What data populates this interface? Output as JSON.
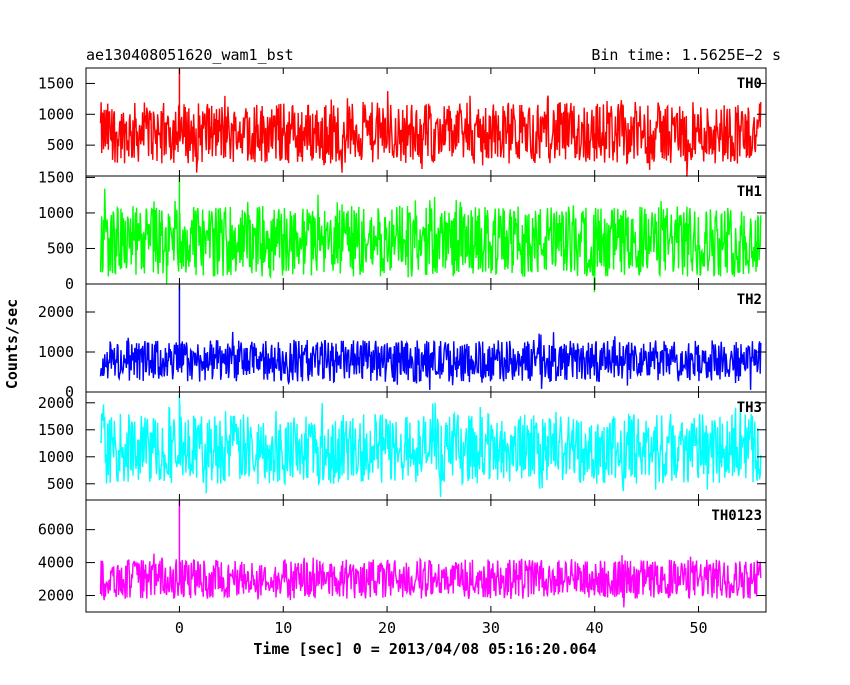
{
  "header": {
    "left": "ae130408051620_wam1_bst",
    "right": "Bin time: 1.5625E−2 s"
  },
  "axes": {
    "xlabel": "Time [sec] 0 = 2013/04/08 05:16:20.064",
    "ylabel": "Counts/sec"
  },
  "chart_data": {
    "type": "line",
    "title": "ae130408051620_wam1_bst",
    "subtitle": "Bin time: 1.5625E−2 s",
    "xlabel": "Time [sec] 0 = 2013/04/08 05:16:20.064",
    "ylabel": "Counts/sec",
    "xlim": [
      -9,
      56.5
    ],
    "x_range": [
      -7.6,
      56.0
    ],
    "x_ticks": [
      0,
      10,
      20,
      30,
      40,
      50
    ],
    "x_tick_labels": [
      "0",
      "10",
      "20",
      "30",
      "40",
      "50"
    ],
    "grid": false,
    "legend": "none",
    "series": [
      {
        "name": "TH0",
        "color": "#ff0000",
        "ylim": [
          0,
          1750
        ],
        "y_ticks": [
          500,
          1000,
          1500
        ],
        "y_tick_labels": [
          "500",
          "1000",
          "1500"
        ],
        "typical_min": 200,
        "typical_max": 1200,
        "mean": 680,
        "peak_x": 0,
        "peak_y": 1750
      },
      {
        "name": "TH1",
        "color": "#00ff00",
        "ylim": [
          0,
          1520
        ],
        "y_ticks": [
          0,
          500,
          1000,
          1500
        ],
        "y_tick_labels": [
          "0",
          "500",
          "1000",
          "1500"
        ],
        "typical_min": 100,
        "typical_max": 1100,
        "mean": 560,
        "peak_x": 0,
        "peak_y": 1500
      },
      {
        "name": "TH2",
        "color": "#0000ff",
        "ylim": [
          0,
          2700
        ],
        "y_ticks": [
          0,
          1000,
          2000
        ],
        "y_tick_labels": [
          "0",
          "1000",
          "2000"
        ],
        "typical_min": 250,
        "typical_max": 1300,
        "mean": 740,
        "peak_x": 0,
        "peak_y": 2700
      },
      {
        "name": "TH3",
        "color": "#00ffff",
        "ylim": [
          200,
          2200
        ],
        "y_ticks": [
          500,
          1000,
          1500,
          2000
        ],
        "y_tick_labels": [
          "500",
          "1000",
          "1500",
          "2000"
        ],
        "typical_min": 500,
        "typical_max": 1800,
        "mean": 1100,
        "peak_x": 0,
        "peak_y": 2150
      },
      {
        "name": "TH0123",
        "color": "#ff00ff",
        "ylim": [
          1000,
          7800
        ],
        "y_ticks": [
          2000,
          4000,
          6000
        ],
        "y_tick_labels": [
          "2000",
          "4000",
          "6000"
        ],
        "typical_min": 1800,
        "typical_max": 4200,
        "mean": 3000,
        "peak_x": 0,
        "peak_y": 7800
      }
    ]
  }
}
